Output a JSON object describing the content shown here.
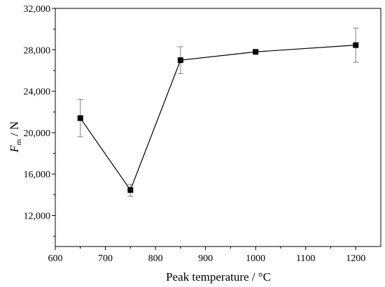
{
  "chart_data": {
    "type": "line",
    "xlabel": "Peak temperature / °C",
    "ylabel": {
      "main": "F",
      "sub": "m",
      "unit": " / N"
    },
    "xlim": [
      600,
      1250
    ],
    "ylim": [
      9000,
      32000
    ],
    "xticks": [
      600,
      700,
      800,
      900,
      1000,
      1100,
      1200
    ],
    "yticks": [
      12000,
      16000,
      20000,
      24000,
      28000,
      32000
    ],
    "xtick_labels": [
      "600",
      "700",
      "800",
      "900",
      "1000",
      "1100",
      "1200"
    ],
    "ytick_labels": [
      "12,000",
      "16,000",
      "20,000",
      "24,000",
      "28,000",
      "32,000"
    ],
    "grid": false,
    "series": [
      {
        "marker": "square",
        "color": "#000000",
        "error_color": "#7f7f7f",
        "points": [
          {
            "x": 650,
            "y": 21400,
            "err_low": 19600,
            "err_high": 23200
          },
          {
            "x": 750,
            "y": 14450,
            "err_low": 13850,
            "err_high": 15000
          },
          {
            "x": 850,
            "y": 27000,
            "err_low": 25700,
            "err_high": 28300
          },
          {
            "x": 1000,
            "y": 27800,
            "err_low": 27800,
            "err_high": 27800
          },
          {
            "x": 1200,
            "y": 28450,
            "err_low": 26800,
            "err_high": 30100
          }
        ]
      }
    ]
  }
}
